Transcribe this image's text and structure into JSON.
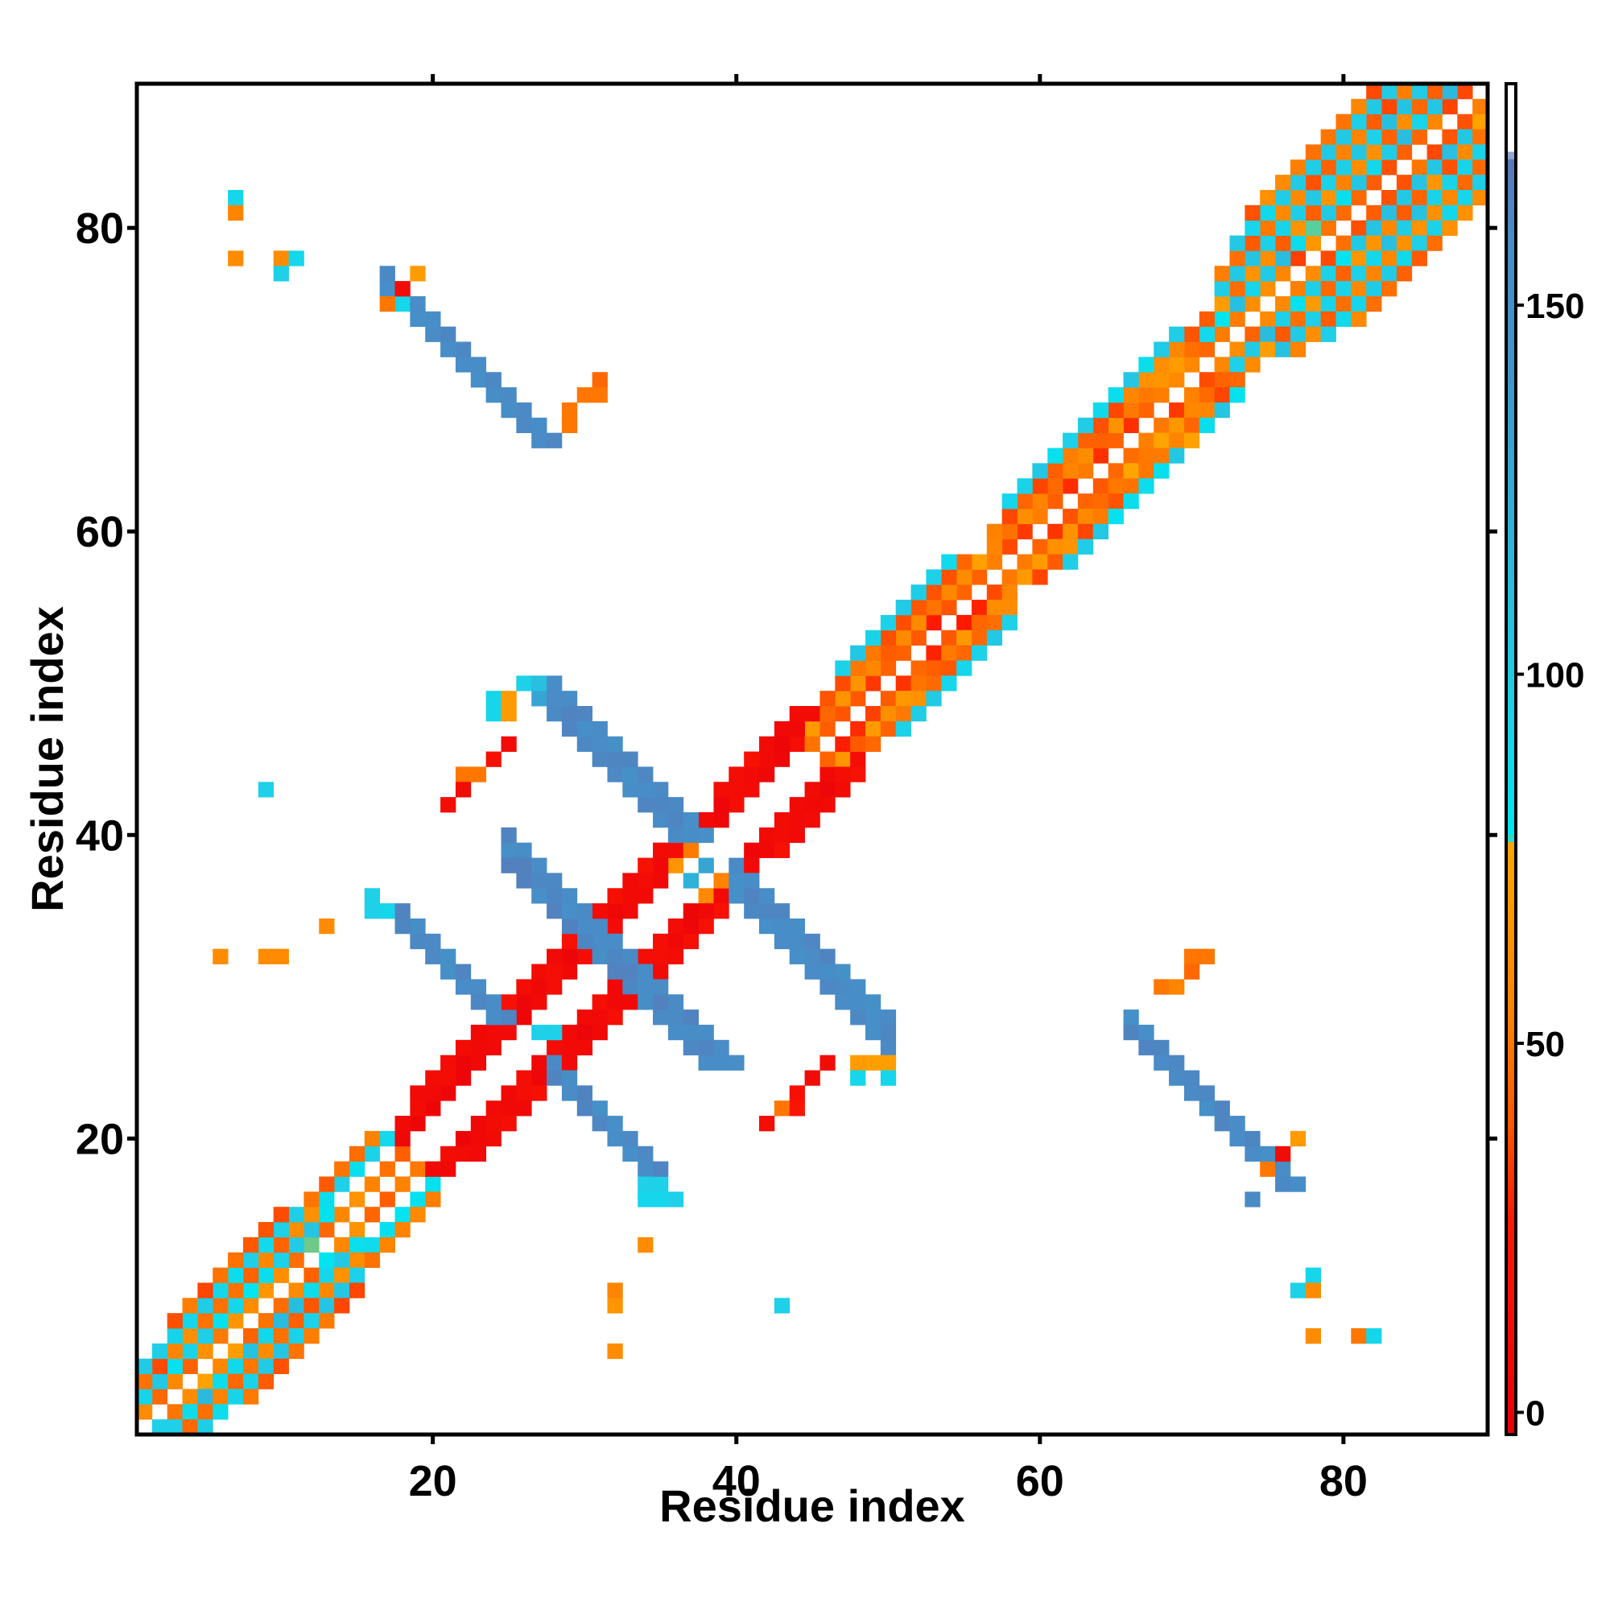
{
  "chart_data": {
    "type": "heatmap",
    "title": "",
    "xlabel": "Residue index",
    "ylabel": "Residue index",
    "xlim": [
      0.5,
      89.5
    ],
    "ylim": [
      0.5,
      89.5
    ],
    "xticks": [
      20,
      40,
      60,
      80
    ],
    "yticks": [
      20,
      40,
      60,
      80
    ],
    "colorbar": {
      "range": [
        -3,
        180
      ],
      "ticks": [
        0,
        50,
        100,
        150
      ],
      "stops": [
        {
          "value": -3,
          "color": "#e8000b"
        },
        {
          "value": 26,
          "color": "#ff1a00"
        },
        {
          "value": 40,
          "color": "#ff5a00"
        },
        {
          "value": 55,
          "color": "#ff8400"
        },
        {
          "value": 77,
          "color": "#ffa500"
        },
        {
          "value": 78,
          "color": "#00e5f0"
        },
        {
          "value": 95,
          "color": "#1ed0e8"
        },
        {
          "value": 115,
          "color": "#2bb9dd"
        },
        {
          "value": 140,
          "color": "#3f97cc"
        },
        {
          "value": 160,
          "color": "#4a8bc6"
        },
        {
          "value": 170,
          "color": "#5a78b8"
        },
        {
          "value": 171,
          "color": "#ffffff"
        },
        {
          "value": 180,
          "color": "#ffffff"
        }
      ]
    },
    "grid": false,
    "legend": "none",
    "note_bands": "Contact map: near-diagonal contacts (colour by sequence separation), antiparallel sheet bands and sparse isolated contacts",
    "bands": [
      {
        "i0": 1,
        "i1": 14,
        "offset": 1,
        "value": 60,
        "vary": 40
      },
      {
        "i0": 1,
        "i1": 13,
        "offset": 2,
        "value": 95,
        "vary": 40
      },
      {
        "i0": 1,
        "i1": 12,
        "offset": 3,
        "value": 50,
        "vary": 30
      },
      {
        "i0": 1,
        "i1": 11,
        "offset": 4,
        "value": 95,
        "vary": 20
      },
      {
        "i0": 3,
        "i1": 10,
        "offset": 5,
        "value": 45,
        "vary": 20
      },
      {
        "i0": 14,
        "i1": 18,
        "offset": 1,
        "value": 55,
        "vary": 30
      },
      {
        "i0": 13,
        "i1": 17,
        "offset": 3,
        "value": 90,
        "vary": 20
      },
      {
        "i0": 12,
        "i1": 16,
        "offset": 4,
        "value": 50,
        "vary": 20
      },
      {
        "i0": 18,
        "i1": 36,
        "offset": 2,
        "value": 8,
        "vary": 10
      },
      {
        "i0": 18,
        "i1": 36,
        "offset": 3,
        "value": 8,
        "vary": 10
      },
      {
        "i0": 19,
        "i1": 35,
        "offset": 4,
        "value": 12,
        "vary": 10
      },
      {
        "i0": 36,
        "i1": 39,
        "offset": 2,
        "value": 60,
        "vary": 20
      },
      {
        "i0": 38,
        "i1": 45,
        "offset": 2,
        "value": 8,
        "vary": 10
      },
      {
        "i0": 38,
        "i1": 45,
        "offset": 3,
        "value": 8,
        "vary": 10
      },
      {
        "i0": 39,
        "i1": 44,
        "offset": 4,
        "value": 12,
        "vary": 10
      },
      {
        "i0": 45,
        "i1": 57,
        "offset": 1,
        "value": 40,
        "vary": 30
      },
      {
        "i0": 45,
        "i1": 56,
        "offset": 2,
        "value": 55,
        "vary": 30
      },
      {
        "i0": 46,
        "i1": 55,
        "offset": 3,
        "value": 50,
        "vary": 30
      },
      {
        "i0": 47,
        "i1": 54,
        "offset": 4,
        "value": 95,
        "vary": 20
      },
      {
        "i0": 56,
        "i1": 72,
        "offset": 1,
        "value": 45,
        "vary": 30
      },
      {
        "i0": 56,
        "i1": 71,
        "offset": 2,
        "value": 60,
        "vary": 35
      },
      {
        "i0": 57,
        "i1": 70,
        "offset": 3,
        "value": 50,
        "vary": 30
      },
      {
        "i0": 58,
        "i1": 69,
        "offset": 4,
        "value": 90,
        "vary": 30
      },
      {
        "i0": 71,
        "i1": 88,
        "offset": 1,
        "value": 50,
        "vary": 35
      },
      {
        "i0": 71,
        "i1": 87,
        "offset": 2,
        "value": 95,
        "vary": 40
      },
      {
        "i0": 71,
        "i1": 86,
        "offset": 3,
        "value": 55,
        "vary": 35
      },
      {
        "i0": 72,
        "i1": 85,
        "offset": 4,
        "value": 100,
        "vary": 20
      },
      {
        "i0": 72,
        "i1": 84,
        "offset": 5,
        "value": 50,
        "vary": 30
      },
      {
        "i0": 73,
        "i1": 83,
        "offset": 6,
        "value": 95,
        "vary": 20
      },
      {
        "i0": 74,
        "i1": 82,
        "offset": 7,
        "value": 50,
        "vary": 30
      }
    ],
    "sheets": [
      {
        "type": "anti",
        "sum": 63,
        "i0": 25,
        "i1": 37,
        "width": 3,
        "value": 160,
        "vary": 12
      },
      {
        "type": "anti",
        "sum": 76,
        "i0": 40,
        "i1": 50,
        "width": 3,
        "value": 158,
        "vary": 12
      },
      {
        "type": "anti",
        "sum": 52,
        "i0": 28,
        "i1": 35,
        "width": 2,
        "value": 158,
        "vary": 12
      },
      {
        "type": "anti",
        "sum": 93,
        "i0": 17,
        "i1": 26,
        "width": 2,
        "value": 158,
        "vary": 12
      },
      {
        "type": "anti",
        "sum": 93,
        "i0": 66,
        "i1": 74,
        "width": 2,
        "value": 158,
        "vary": 12
      }
    ],
    "points": [
      {
        "x": 2,
        "y": 1,
        "value": 95
      },
      {
        "x": 3,
        "y": 1,
        "value": 95
      },
      {
        "x": 4,
        "y": 1,
        "value": 45
      },
      {
        "x": 7,
        "y": 82,
        "value": 90
      },
      {
        "x": 7,
        "y": 81,
        "value": 55
      },
      {
        "x": 7,
        "y": 78,
        "value": 60
      },
      {
        "x": 10,
        "y": 78,
        "value": 60
      },
      {
        "x": 11,
        "y": 78,
        "value": 90
      },
      {
        "x": 10,
        "y": 77,
        "value": 95
      },
      {
        "x": 19,
        "y": 77,
        "value": 70
      },
      {
        "x": 18,
        "y": 76,
        "value": 10
      },
      {
        "x": 17,
        "y": 75,
        "value": 50
      },
      {
        "x": 18,
        "y": 75,
        "value": 90
      },
      {
        "x": 31,
        "y": 70,
        "value": 45
      },
      {
        "x": 31,
        "y": 69,
        "value": 50
      },
      {
        "x": 30,
        "y": 69,
        "value": 50
      },
      {
        "x": 29,
        "y": 68,
        "value": 50
      },
      {
        "x": 29,
        "y": 67,
        "value": 50
      },
      {
        "x": 24,
        "y": 49,
        "value": 90
      },
      {
        "x": 25,
        "y": 49,
        "value": 70
      },
      {
        "x": 24,
        "y": 48,
        "value": 90
      },
      {
        "x": 25,
        "y": 48,
        "value": 70
      },
      {
        "x": 26,
        "y": 50,
        "value": 95
      },
      {
        "x": 27,
        "y": 50,
        "value": 110
      },
      {
        "x": 27,
        "y": 49,
        "value": 130
      },
      {
        "x": 25,
        "y": 46,
        "value": 10
      },
      {
        "x": 24,
        "y": 45,
        "value": 15
      },
      {
        "x": 23,
        "y": 44,
        "value": 50
      },
      {
        "x": 22,
        "y": 44,
        "value": 50
      },
      {
        "x": 22,
        "y": 43,
        "value": 10
      },
      {
        "x": 21,
        "y": 42,
        "value": 12
      },
      {
        "x": 9,
        "y": 43,
        "value": 95
      },
      {
        "x": 16,
        "y": 36,
        "value": 95
      },
      {
        "x": 16,
        "y": 35,
        "value": 95
      },
      {
        "x": 17,
        "y": 35,
        "value": 90
      },
      {
        "x": 13,
        "y": 34,
        "value": 60
      },
      {
        "x": 6,
        "y": 32,
        "value": 60
      },
      {
        "x": 9,
        "y": 32,
        "value": 60
      },
      {
        "x": 10,
        "y": 32,
        "value": 60
      },
      {
        "x": 70,
        "y": 32,
        "value": 50
      },
      {
        "x": 71,
        "y": 32,
        "value": 50
      },
      {
        "x": 70,
        "y": 31,
        "value": 45
      },
      {
        "x": 68,
        "y": 30,
        "value": 50
      },
      {
        "x": 69,
        "y": 30,
        "value": 55
      },
      {
        "x": 48,
        "y": 25,
        "value": 70
      },
      {
        "x": 49,
        "y": 25,
        "value": 72
      },
      {
        "x": 50,
        "y": 25,
        "value": 72
      },
      {
        "x": 48,
        "y": 24,
        "value": 90
      },
      {
        "x": 50,
        "y": 24,
        "value": 90
      },
      {
        "x": 46,
        "y": 25,
        "value": 10
      },
      {
        "x": 45,
        "y": 24,
        "value": 10
      },
      {
        "x": 44,
        "y": 23,
        "value": 15
      },
      {
        "x": 43,
        "y": 22,
        "value": 50
      },
      {
        "x": 44,
        "y": 22,
        "value": 20
      },
      {
        "x": 42,
        "y": 21,
        "value": 12
      },
      {
        "x": 77,
        "y": 20,
        "value": 70
      },
      {
        "x": 76,
        "y": 19,
        "value": 10
      },
      {
        "x": 75,
        "y": 18,
        "value": 50
      },
      {
        "x": 74,
        "y": 16,
        "value": 160
      },
      {
        "x": 34,
        "y": 17,
        "value": 95
      },
      {
        "x": 35,
        "y": 17,
        "value": 95
      },
      {
        "x": 34,
        "y": 16,
        "value": 90
      },
      {
        "x": 35,
        "y": 16,
        "value": 90
      },
      {
        "x": 36,
        "y": 16,
        "value": 95
      },
      {
        "x": 34,
        "y": 13,
        "value": 60
      },
      {
        "x": 32,
        "y": 10,
        "value": 55
      },
      {
        "x": 32,
        "y": 9,
        "value": 65
      },
      {
        "x": 32,
        "y": 6,
        "value": 60
      },
      {
        "x": 43,
        "y": 9,
        "value": 95
      },
      {
        "x": 78,
        "y": 11,
        "value": 90
      },
      {
        "x": 77,
        "y": 10,
        "value": 95
      },
      {
        "x": 78,
        "y": 10,
        "value": 60
      },
      {
        "x": 78,
        "y": 7,
        "value": 60
      },
      {
        "x": 81,
        "y": 7,
        "value": 50
      },
      {
        "x": 82,
        "y": 7,
        "value": 90
      },
      {
        "x": 27,
        "y": 27,
        "value": 95
      },
      {
        "x": 28,
        "y": 27,
        "value": 95
      },
      {
        "x": 37,
        "y": 37,
        "value": 120
      },
      {
        "x": 38,
        "y": 38,
        "value": 130
      }
    ]
  }
}
